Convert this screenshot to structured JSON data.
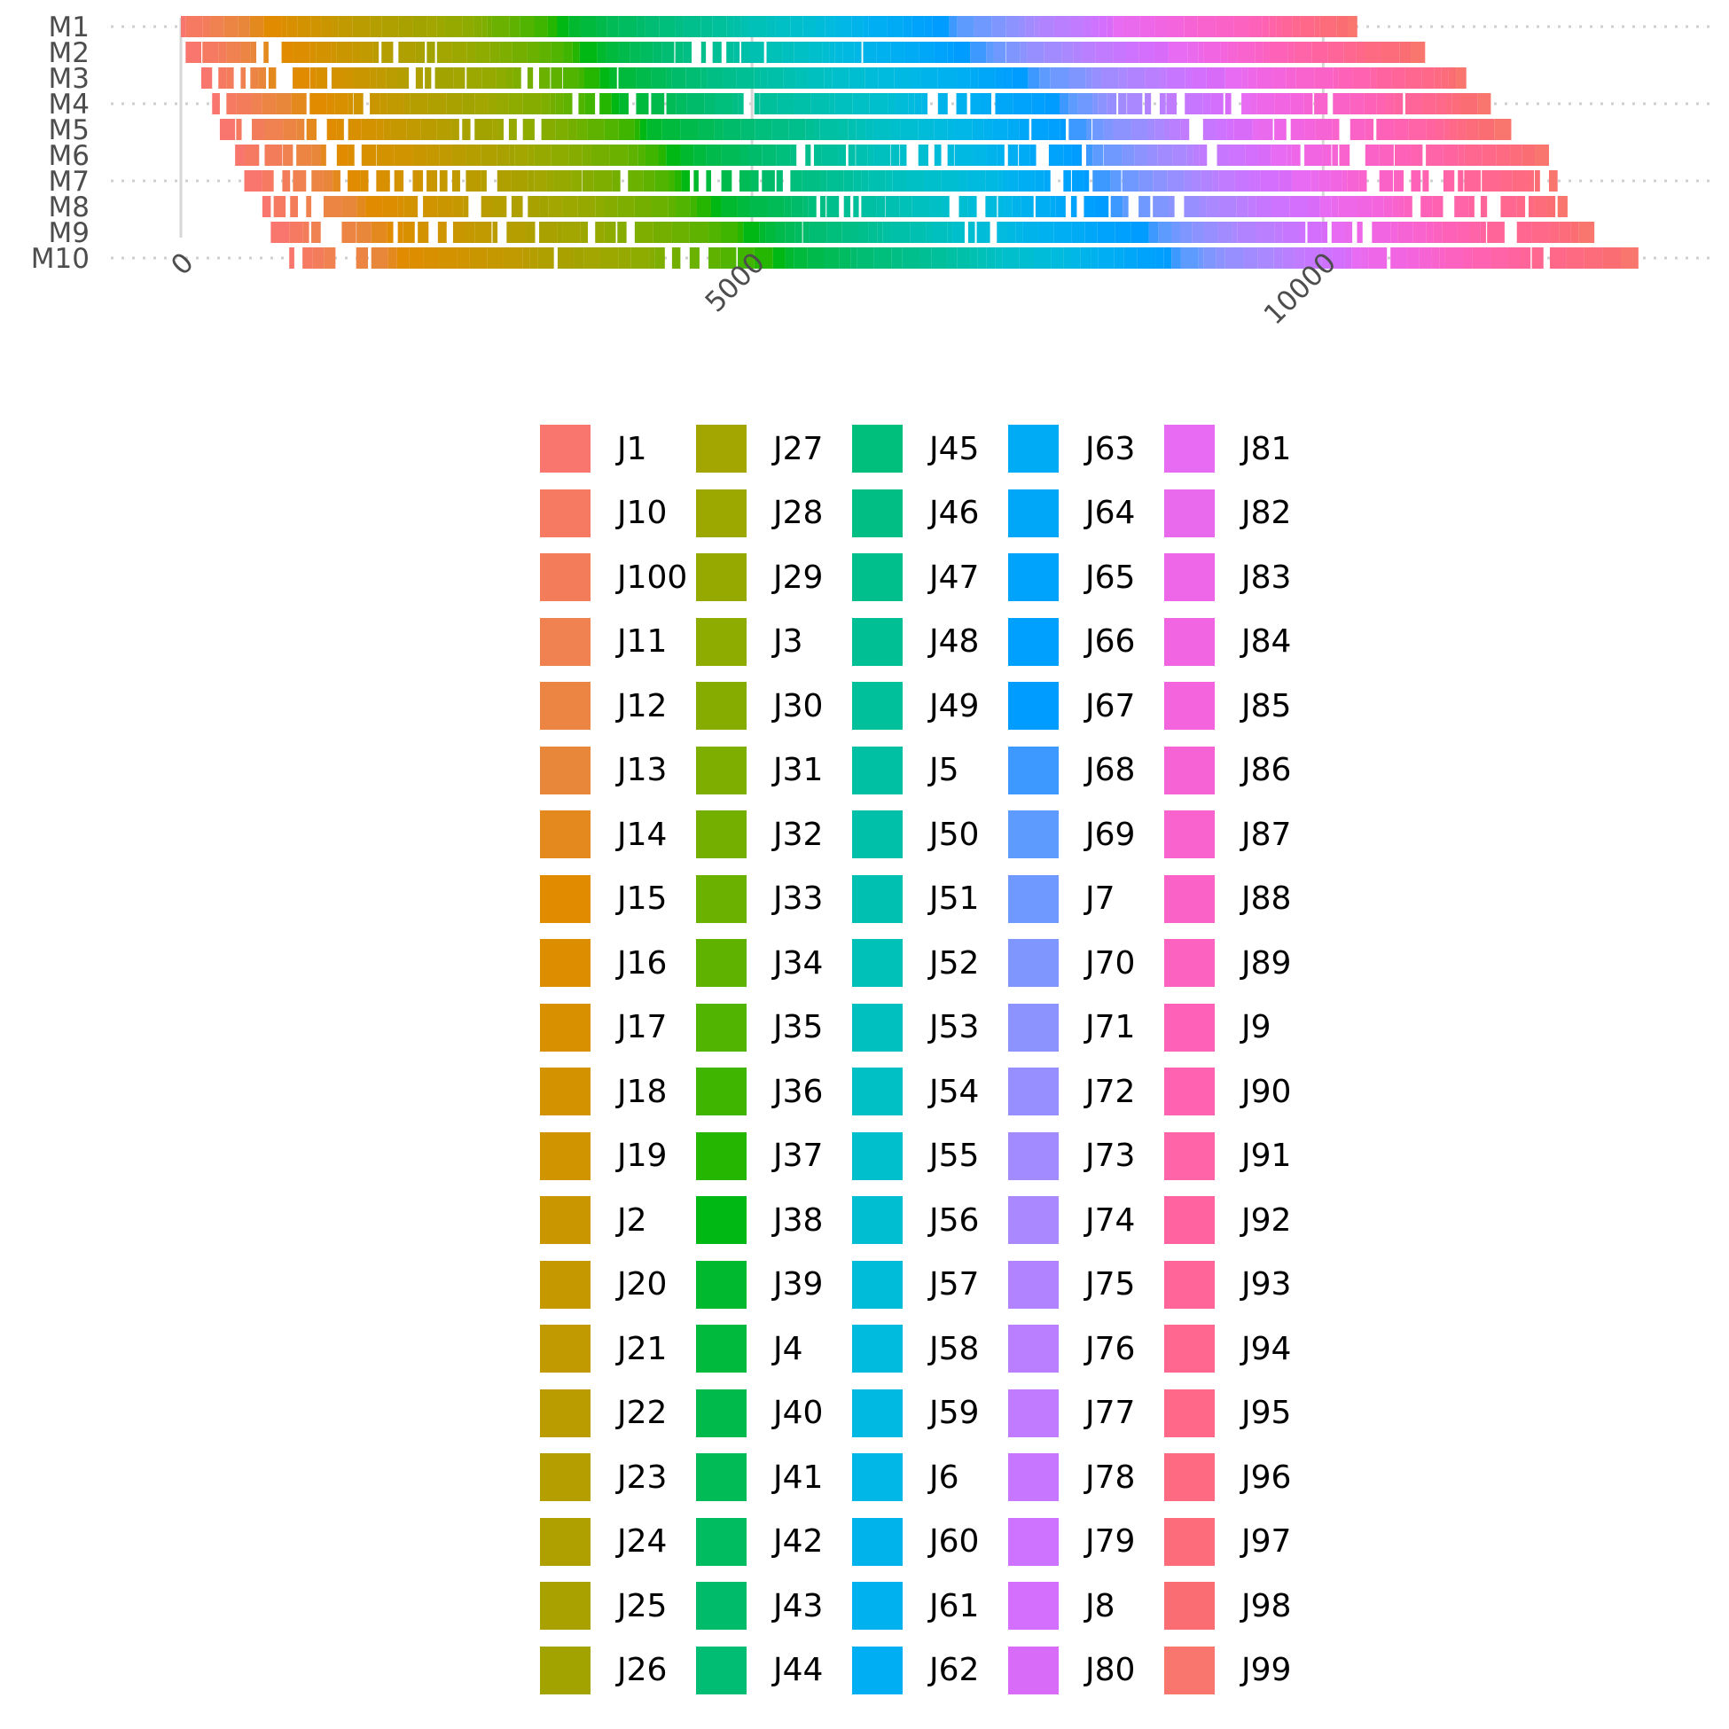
{
  "chart_data": {
    "type": "gantt",
    "title": "",
    "xlabel": "",
    "ylabel": "",
    "machines": [
      "M1",
      "M2",
      "M3",
      "M4",
      "M5",
      "M6",
      "M7",
      "M8",
      "M9",
      "M10"
    ],
    "xlim": [
      0,
      12800
    ],
    "x_ticks": [
      "0",
      "5000",
      "10000"
    ],
    "x_tick_values": [
      0,
      5000,
      10000
    ],
    "grid": "dotted horizontal gridlines at M1, M4, M7, M10; solid vertical gridlines at 0, 5000, 10000",
    "n_jobs": 100,
    "processing_time_range": [
      50,
      200
    ],
    "first_job_start": 0,
    "makespan": 12760,
    "legend": {
      "position": "bottom",
      "columns": 5,
      "entries": [
        {
          "label": "J1",
          "color": "#F8766D"
        },
        {
          "label": "J10",
          "color": "#F67A62"
        },
        {
          "label": "J100",
          "color": "#F37D5A"
        },
        {
          "label": "J11",
          "color": "#F08150"
        },
        {
          "label": "J12",
          "color": "#EC8444"
        },
        {
          "label": "J13",
          "color": "#E8873A"
        },
        {
          "label": "J14",
          "color": "#E4891E"
        },
        {
          "label": "J15",
          "color": "#E08B00"
        },
        {
          "label": "J16",
          "color": "#DC8E00"
        },
        {
          "label": "J17",
          "color": "#D89000"
        },
        {
          "label": "J18",
          "color": "#D39200"
        },
        {
          "label": "J19",
          "color": "#CF9400"
        },
        {
          "label": "J2",
          "color": "#CA9600"
        },
        {
          "label": "J20",
          "color": "#C59800"
        },
        {
          "label": "J21",
          "color": "#C09A00"
        },
        {
          "label": "J22",
          "color": "#BA9C00"
        },
        {
          "label": "J23",
          "color": "#B59E00"
        },
        {
          "label": "J24",
          "color": "#AFA000"
        },
        {
          "label": "J25",
          "color": "#A9A100"
        },
        {
          "label": "J26",
          "color": "#A3A300"
        },
        {
          "label": "J27",
          "color": "#A3A500"
        },
        {
          "label": "J28",
          "color": "#9CA700"
        },
        {
          "label": "J29",
          "color": "#95A900"
        },
        {
          "label": "J3",
          "color": "#8EAB00"
        },
        {
          "label": "J30",
          "color": "#86AC00"
        },
        {
          "label": "J31",
          "color": "#7EAE00"
        },
        {
          "label": "J32",
          "color": "#74AF00"
        },
        {
          "label": "J33",
          "color": "#6AB100"
        },
        {
          "label": "J34",
          "color": "#5FB200"
        },
        {
          "label": "J35",
          "color": "#51B400"
        },
        {
          "label": "J36",
          "color": "#40B500"
        },
        {
          "label": "J37",
          "color": "#24B600"
        },
        {
          "label": "J38",
          "color": "#00B813"
        },
        {
          "label": "J39",
          "color": "#00B92E"
        },
        {
          "label": "J4",
          "color": "#00BA3E"
        },
        {
          "label": "J40",
          "color": "#00BA4B"
        },
        {
          "label": "J41",
          "color": "#00BB56"
        },
        {
          "label": "J42",
          "color": "#00BC60"
        },
        {
          "label": "J43",
          "color": "#00BC6A"
        },
        {
          "label": "J44",
          "color": "#00BD73"
        },
        {
          "label": "J45",
          "color": "#00BE7B"
        },
        {
          "label": "J46",
          "color": "#00BE84"
        },
        {
          "label": "J47",
          "color": "#00BF8C"
        },
        {
          "label": "J48",
          "color": "#00BF94"
        },
        {
          "label": "J49",
          "color": "#00C09B"
        },
        {
          "label": "J5",
          "color": "#00C0A3"
        },
        {
          "label": "J50",
          "color": "#00C0AA"
        },
        {
          "label": "J51",
          "color": "#00C0B1"
        },
        {
          "label": "J52",
          "color": "#00C1B8"
        },
        {
          "label": "J53",
          "color": "#00C0BF"
        },
        {
          "label": "J54",
          "color": "#00C0C6"
        },
        {
          "label": "J55",
          "color": "#00BFCC"
        },
        {
          "label": "J56",
          "color": "#00BED2"
        },
        {
          "label": "J57",
          "color": "#00BCD8"
        },
        {
          "label": "J58",
          "color": "#00BBDD"
        },
        {
          "label": "J59",
          "color": "#00B9E2"
        },
        {
          "label": "J6",
          "color": "#00B7E7"
        },
        {
          "label": "J60",
          "color": "#00B4EB"
        },
        {
          "label": "J61",
          "color": "#00B1EF"
        },
        {
          "label": "J62",
          "color": "#00AEF3"
        },
        {
          "label": "J63",
          "color": "#00ABF6"
        },
        {
          "label": "J64",
          "color": "#00A7F9"
        },
        {
          "label": "J65",
          "color": "#00A3FB"
        },
        {
          "label": "J66",
          "color": "#00A1FE"
        },
        {
          "label": "J67",
          "color": "#009CFF"
        },
        {
          "label": "J68",
          "color": "#3D98FF"
        },
        {
          "label": "J69",
          "color": "#5D9BFF"
        },
        {
          "label": "J7",
          "color": "#6F99FF"
        },
        {
          "label": "J70",
          "color": "#7F96FF"
        },
        {
          "label": "J71",
          "color": "#8C93FF"
        },
        {
          "label": "J72",
          "color": "#978FFF"
        },
        {
          "label": "J73",
          "color": "#A18BFF"
        },
        {
          "label": "J74",
          "color": "#AA88FF"
        },
        {
          "label": "J75",
          "color": "#B283FF"
        },
        {
          "label": "J76",
          "color": "#BA7FFF"
        },
        {
          "label": "J77",
          "color": "#C17BFF"
        },
        {
          "label": "J78",
          "color": "#C777FF"
        },
        {
          "label": "J79",
          "color": "#CD73FF"
        },
        {
          "label": "J8",
          "color": "#D36FFC"
        },
        {
          "label": "J80",
          "color": "#D86CF9"
        },
        {
          "label": "J81",
          "color": "#E76BF3"
        },
        {
          "label": "J82",
          "color": "#EA6AEE"
        },
        {
          "label": "J83",
          "color": "#EE67E8"
        },
        {
          "label": "J84",
          "color": "#F165E2"
        },
        {
          "label": "J85",
          "color": "#F464DC"
        },
        {
          "label": "J86",
          "color": "#F663D5"
        },
        {
          "label": "J87",
          "color": "#F963CE"
        },
        {
          "label": "J88",
          "color": "#FB62C7"
        },
        {
          "label": "J89",
          "color": "#FC62C0"
        },
        {
          "label": "J9",
          "color": "#FE62B8"
        },
        {
          "label": "J90",
          "color": "#FF62B0"
        },
        {
          "label": "J91",
          "color": "#FF63A8"
        },
        {
          "label": "J92",
          "color": "#FF64A0"
        },
        {
          "label": "J93",
          "color": "#FF6598"
        },
        {
          "label": "J94",
          "color": "#FF6790"
        },
        {
          "label": "J95",
          "color": "#FF6888"
        },
        {
          "label": "J96",
          "color": "#FD6A81"
        },
        {
          "label": "J97",
          "color": "#FC6C7A"
        },
        {
          "label": "J98",
          "color": "#FA6E73"
        },
        {
          "label": "J99",
          "color": "#F8766D"
        }
      ]
    }
  }
}
